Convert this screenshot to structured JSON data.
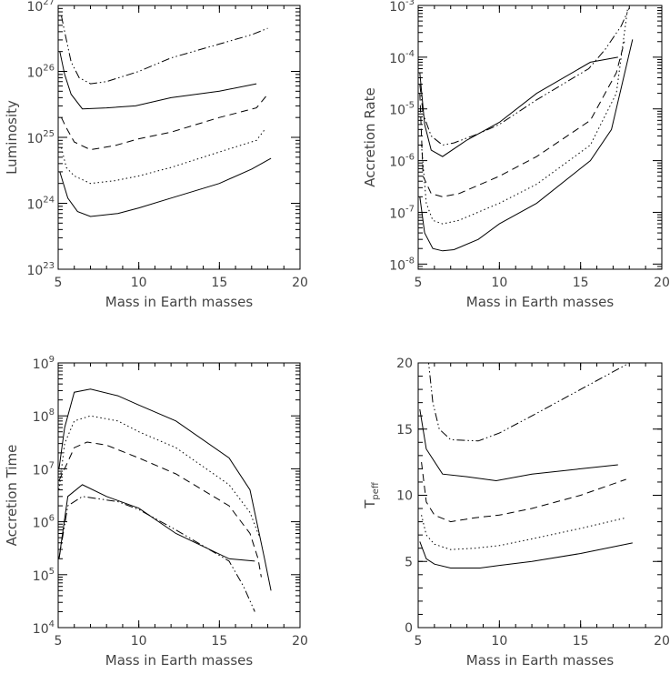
{
  "chart_data": [
    {
      "type": "line",
      "xlabel": "Mass in Earth masses",
      "ylabel": "Luminosity",
      "xlim": [
        5,
        20
      ],
      "xticks": [
        "5",
        "10",
        "15",
        "20"
      ],
      "ylim_log10": [
        23,
        27
      ],
      "yscale": "log",
      "yticks": [
        {
          "base": "10",
          "exp": "23"
        },
        {
          "base": "10",
          "exp": "24"
        },
        {
          "base": "10",
          "exp": "25"
        },
        {
          "base": "10",
          "exp": "26"
        },
        {
          "base": "10",
          "exp": "27"
        }
      ],
      "series": [
        {
          "style": "dashdot",
          "points": [
            [
              5.2,
              7e+26
            ],
            [
              5.4,
              4e+26
            ],
            [
              5.8,
              1.4e+26
            ],
            [
              6.3,
              8e+25
            ],
            [
              7,
              6.5e+25
            ],
            [
              8,
              7e+25
            ],
            [
              10,
              1e+26
            ],
            [
              12,
              1.6e+26
            ],
            [
              15,
              2.6e+26
            ],
            [
              17,
              3.6e+26
            ],
            [
              18,
              4.5e+26
            ]
          ]
        },
        {
          "style": "solid",
          "points": [
            [
              5.1,
              2e+26
            ],
            [
              5.4,
              9e+25
            ],
            [
              5.8,
              4.5e+25
            ],
            [
              6.5,
              2.7e+25
            ],
            [
              8,
              2.8e+25
            ],
            [
              9.8,
              3e+25
            ],
            [
              12,
              4e+25
            ],
            [
              15,
              5e+25
            ],
            [
              17.3,
              6.5e+25
            ]
          ]
        },
        {
          "style": "dashed",
          "points": [
            [
              5.2,
              2e+25
            ],
            [
              5.5,
              1.4e+25
            ],
            [
              6,
              8.5e+24
            ],
            [
              7,
              6.5e+24
            ],
            [
              8.5,
              7.5e+24
            ],
            [
              10,
              9.5e+24
            ],
            [
              12,
              1.2e+25
            ],
            [
              15,
              2e+25
            ],
            [
              17.3,
              2.8e+25
            ],
            [
              18,
              4.5e+25
            ]
          ]
        },
        {
          "style": "dotted",
          "points": [
            [
              5.2,
              7e+24
            ],
            [
              5.5,
              3.5e+24
            ],
            [
              6,
              2.6e+24
            ],
            [
              7,
              2e+24
            ],
            [
              8.5,
              2.2e+24
            ],
            [
              10,
              2.6e+24
            ],
            [
              12,
              3.5e+24
            ],
            [
              15,
              6e+24
            ],
            [
              17.3,
              9e+24
            ],
            [
              17.8,
              1.3e+25
            ]
          ]
        },
        {
          "style": "solid",
          "points": [
            [
              5.1,
              3e+24
            ],
            [
              5.6,
              1.2e+24
            ],
            [
              6.2,
              7.5e+23
            ],
            [
              7,
              6.3e+23
            ],
            [
              8.7,
              7e+23
            ],
            [
              10,
              8.5e+23
            ],
            [
              12,
              1.2e+24
            ],
            [
              15,
              2e+24
            ],
            [
              17,
              3.3e+24
            ],
            [
              18.2,
              4.8e+24
            ]
          ]
        }
      ]
    },
    {
      "type": "line",
      "xlabel": "Mass in Earth masses",
      "ylabel": "Accretion Rate",
      "xlim": [
        5,
        20
      ],
      "xticks": [
        "5",
        "10",
        "15",
        "20"
      ],
      "ylim_log10": [
        -8.1,
        -3
      ],
      "yscale": "log",
      "yticks": [
        {
          "base": "10",
          "exp": "-8"
        },
        {
          "base": "10",
          "exp": "-7"
        },
        {
          "base": "10",
          "exp": "-6"
        },
        {
          "base": "10",
          "exp": "-5"
        },
        {
          "base": "10",
          "exp": "-4"
        },
        {
          "base": "10",
          "exp": "-3"
        }
      ],
      "series": [
        {
          "style": "dashdot",
          "points": [
            [
              5.1,
              3e-05
            ],
            [
              5.3,
              8e-06
            ],
            [
              5.8,
              3e-06
            ],
            [
              6.5,
              2e-06
            ],
            [
              7.2,
              2.2e-06
            ],
            [
              8.7,
              3.3e-06
            ],
            [
              10,
              5e-06
            ],
            [
              12.3,
              1.5e-05
            ],
            [
              15.5,
              6e-05
            ],
            [
              16.5,
              0.00014
            ],
            [
              17.5,
              0.0004
            ],
            [
              18,
              0.0009
            ]
          ]
        },
        {
          "style": "solid",
          "points": [
            [
              5.1,
              5e-05
            ],
            [
              5.4,
              5e-06
            ],
            [
              5.8,
              1.6e-06
            ],
            [
              6.5,
              1.2e-06
            ],
            [
              8,
              2.5e-06
            ],
            [
              10,
              5.5e-06
            ],
            [
              12.3,
              2e-05
            ],
            [
              15.6,
              8e-05
            ],
            [
              17.3,
              0.0001
            ]
          ]
        },
        {
          "style": "dashed",
          "points": [
            [
              5.1,
              2e-05
            ],
            [
              5.3,
              5e-07
            ],
            [
              5.8,
              2.3e-07
            ],
            [
              6.5,
              2e-07
            ],
            [
              7.5,
              2.3e-07
            ],
            [
              10,
              5e-07
            ],
            [
              12.3,
              1.2e-06
            ],
            [
              15.6,
              6e-06
            ],
            [
              17.2,
              5e-05
            ],
            [
              17.7,
              0.0002
            ]
          ]
        },
        {
          "style": "dotted",
          "points": [
            [
              5.2,
              2e-06
            ],
            [
              5.5,
              1.5e-07
            ],
            [
              5.9,
              7e-08
            ],
            [
              6.5,
              6e-08
            ],
            [
              7.5,
              7e-08
            ],
            [
              10,
              1.5e-07
            ],
            [
              12.3,
              3.5e-07
            ],
            [
              15.6,
              2e-06
            ],
            [
              17.2,
              2e-05
            ],
            [
              17.9,
              0.0009
            ]
          ]
        },
        {
          "style": "solid",
          "points": [
            [
              5.1,
              2e-07
            ],
            [
              5.4,
              4e-08
            ],
            [
              5.9,
              2e-08
            ],
            [
              6.5,
              1.8e-08
            ],
            [
              7.2,
              1.9e-08
            ],
            [
              8.7,
              3e-08
            ],
            [
              10,
              6e-08
            ],
            [
              12.3,
              1.5e-07
            ],
            [
              15.6,
              1e-06
            ],
            [
              16.9,
              4e-06
            ],
            [
              18.2,
              0.00022
            ]
          ]
        }
      ]
    },
    {
      "type": "line",
      "xlabel": "Mass in Earth masses",
      "ylabel": "Accretion Time",
      "xlim": [
        5,
        20
      ],
      "xticks": [
        "5",
        "10",
        "15",
        "20"
      ],
      "ylim_log10": [
        4,
        9
      ],
      "yscale": "log",
      "yticks": [
        {
          "base": "10",
          "exp": "4"
        },
        {
          "base": "10",
          "exp": "5"
        },
        {
          "base": "10",
          "exp": "6"
        },
        {
          "base": "10",
          "exp": "7"
        },
        {
          "base": "10",
          "exp": "8"
        },
        {
          "base": "10",
          "exp": "9"
        }
      ],
      "series": [
        {
          "style": "solid",
          "points": [
            [
              5.05,
              10000000.0
            ],
            [
              5.4,
              60000000.0
            ],
            [
              6,
              280000000.0
            ],
            [
              7,
              320000000.0
            ],
            [
              8.7,
              240000000.0
            ],
            [
              10,
              160000000.0
            ],
            [
              12.3,
              80000000.0
            ],
            [
              15.6,
              16000000.0
            ],
            [
              16.9,
              4000000.0
            ],
            [
              17.8,
              200000.0
            ],
            [
              18.2,
              50000.0
            ]
          ]
        },
        {
          "style": "dotted",
          "points": [
            [
              5.05,
              4000000.0
            ],
            [
              5.4,
              30000000.0
            ],
            [
              6,
              80000000.0
            ],
            [
              7,
              100000000.0
            ],
            [
              8.7,
              80000000.0
            ],
            [
              10,
              50000000.0
            ],
            [
              12.3,
              25000000.0
            ],
            [
              15.6,
              5000000.0
            ],
            [
              16.9,
              1500000.0
            ],
            [
              17.5,
              500000.0
            ]
          ]
        },
        {
          "style": "dashed",
          "points": [
            [
              5.05,
              6000000.0
            ],
            [
              5.4,
              10000000.0
            ],
            [
              6,
              25000000.0
            ],
            [
              6.8,
              32000000.0
            ],
            [
              8,
              28000000.0
            ],
            [
              10,
              16000000.0
            ],
            [
              12.3,
              8000000.0
            ],
            [
              15.6,
              2000000.0
            ],
            [
              16.9,
              600000.0
            ],
            [
              17.4,
              200000.0
            ],
            [
              17.6,
              90000.0
            ]
          ]
        },
        {
          "style": "solid",
          "points": [
            [
              5.05,
              200000.0
            ],
            [
              5.6,
              3000000.0
            ],
            [
              6.5,
              5000000.0
            ],
            [
              8,
              3000000.0
            ],
            [
              10,
              1800000.0
            ],
            [
              12.3,
              600000.0
            ],
            [
              15.6,
              200000.0
            ],
            [
              17.2,
              180000.0
            ]
          ]
        },
        {
          "style": "dashdot",
          "points": [
            [
              5.05,
              200000.0
            ],
            [
              5.6,
              2000000.0
            ],
            [
              6.5,
              3000000.0
            ],
            [
              8.7,
              2400000.0
            ],
            [
              10,
              1700000.0
            ],
            [
              12.3,
              700000.0
            ],
            [
              15.6,
              180000.0
            ],
            [
              16.5,
              60000.0
            ],
            [
              17.2,
              20000.0
            ]
          ]
        }
      ]
    },
    {
      "type": "line",
      "xlabel": "Mass in Earth masses",
      "ylabel": {
        "base": "T",
        "sub": "peff"
      },
      "xlim": [
        5,
        20
      ],
      "xticks": [
        "5",
        "10",
        "15",
        "20"
      ],
      "ylim": [
        0,
        20
      ],
      "yscale": "linear",
      "yticks": [
        "0",
        "5",
        "10",
        "15",
        "20"
      ],
      "series": [
        {
          "style": "dashdot",
          "points": [
            [
              5.6,
              20.5
            ],
            [
              5.9,
              17
            ],
            [
              6.3,
              15
            ],
            [
              7,
              14.2
            ],
            [
              8.7,
              14.1
            ],
            [
              10,
              14.7
            ],
            [
              12,
              16
            ],
            [
              15,
              18
            ],
            [
              18,
              20
            ]
          ]
        },
        {
          "style": "solid",
          "points": [
            [
              5.1,
              16.5
            ],
            [
              5.5,
              13.5
            ],
            [
              6.5,
              11.6
            ],
            [
              8,
              11.4
            ],
            [
              9.8,
              11.1
            ],
            [
              12,
              11.6
            ],
            [
              15,
              12
            ],
            [
              17.3,
              12.3
            ]
          ]
        },
        {
          "style": "dashed",
          "points": [
            [
              5.2,
              12.5
            ],
            [
              5.5,
              9.5
            ],
            [
              6,
              8.5
            ],
            [
              7,
              8
            ],
            [
              8.5,
              8.3
            ],
            [
              10,
              8.5
            ],
            [
              12,
              9
            ],
            [
              15,
              10
            ],
            [
              17.8,
              11.2
            ]
          ]
        },
        {
          "style": "dotted",
          "points": [
            [
              5.2,
              8.5
            ],
            [
              5.5,
              7
            ],
            [
              6,
              6.3
            ],
            [
              7,
              5.9
            ],
            [
              8.5,
              6
            ],
            [
              10,
              6.2
            ],
            [
              12,
              6.7
            ],
            [
              15,
              7.5
            ],
            [
              17.8,
              8.3
            ]
          ]
        },
        {
          "style": "solid",
          "points": [
            [
              5.1,
              6.5
            ],
            [
              5.5,
              5.2
            ],
            [
              6,
              4.8
            ],
            [
              7,
              4.5
            ],
            [
              8.8,
              4.5
            ],
            [
              10,
              4.7
            ],
            [
              12,
              5
            ],
            [
              15,
              5.6
            ],
            [
              18.2,
              6.4
            ]
          ]
        }
      ]
    }
  ]
}
